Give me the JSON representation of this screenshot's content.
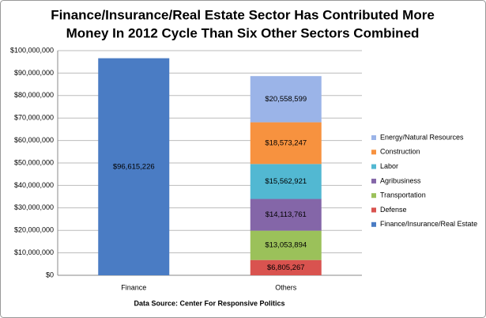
{
  "chart_data": {
    "type": "stacked_bar",
    "title": [
      "Finance/Insurance/Real Estate Sector Has Contributed More",
      "Money In 2012 Cycle Than Six Other Sectors Combined"
    ],
    "source": "Data Source: Center For Responsive Politics",
    "categories": [
      "Finance",
      "Others"
    ],
    "series": [
      {
        "name": "Finance/Insurance/Real Estate",
        "color": "#4a7cc4",
        "values": [
          96615226,
          null
        ],
        "value_labels": [
          "$96,615,226",
          null
        ]
      },
      {
        "name": "Defense",
        "color": "#d9534f",
        "values": [
          null,
          6805267
        ],
        "value_labels": [
          null,
          "$6,805,267"
        ]
      },
      {
        "name": "Transportation",
        "color": "#9bc15a",
        "values": [
          null,
          13053894
        ],
        "value_labels": [
          null,
          "$13,053,894"
        ]
      },
      {
        "name": "Agribusiness",
        "color": "#8466a8",
        "values": [
          null,
          14113761
        ],
        "value_labels": [
          null,
          "$14,113,761"
        ]
      },
      {
        "name": "Labor",
        "color": "#52b8d2",
        "values": [
          null,
          15562921
        ],
        "value_labels": [
          null,
          "$15,562,921"
        ]
      },
      {
        "name": "Construction",
        "color": "#f7923f",
        "values": [
          null,
          18573247
        ],
        "value_labels": [
          null,
          "$18,573,247"
        ]
      },
      {
        "name": "Energy/Natural Resources",
        "color": "#9bb4e8",
        "values": [
          null,
          20558599
        ],
        "value_labels": [
          null,
          "$20,558,599"
        ]
      }
    ],
    "ylim": [
      0,
      100000000
    ],
    "yticks": [
      {
        "value": 0,
        "label": "$0"
      },
      {
        "value": 10000000,
        "label": "$10,000,000"
      },
      {
        "value": 20000000,
        "label": "$20,000,000"
      },
      {
        "value": 30000000,
        "label": "$30,000,000"
      },
      {
        "value": 40000000,
        "label": "$40,000,000"
      },
      {
        "value": 50000000,
        "label": "$50,000,000"
      },
      {
        "value": 60000000,
        "label": "$60,000,000"
      },
      {
        "value": 70000000,
        "label": "$70,000,000"
      },
      {
        "value": 80000000,
        "label": "$80,000,000"
      },
      {
        "value": 90000000,
        "label": "$90,000,000"
      },
      {
        "value": 100000000,
        "label": "$100,000,000"
      }
    ],
    "grid": true,
    "legend": "right"
  }
}
